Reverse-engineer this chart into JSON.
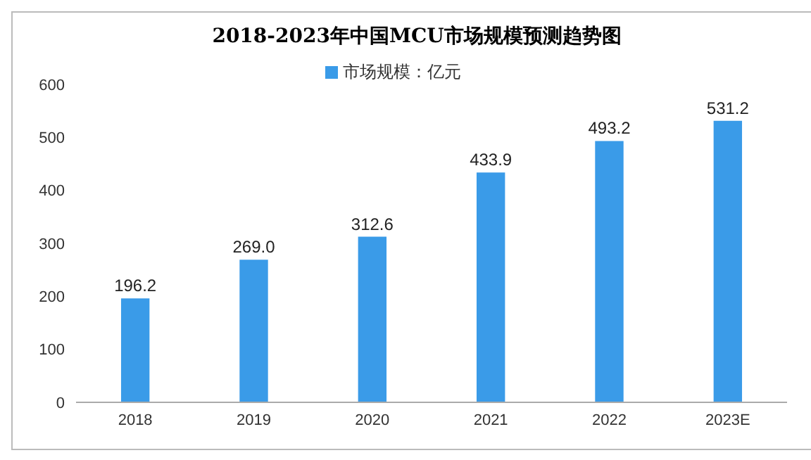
{
  "chart_data": {
    "type": "bar",
    "title": "2018-2023年中国MCU市场规模预测趋势图",
    "categories": [
      "2018",
      "2019",
      "2020",
      "2021",
      "2022",
      "2023E"
    ],
    "series": [
      {
        "name": "市场规模：亿元",
        "color": "#3a9be8",
        "values": [
          196.2,
          269.0,
          312.6,
          433.9,
          493.2,
          531.2
        ],
        "value_labels": [
          "196.2",
          "269.0",
          "312.6",
          "433.9",
          "493.2",
          "531.2"
        ]
      }
    ],
    "ylim": [
      0,
      600
    ],
    "yticks": [
      0,
      100,
      200,
      300,
      400,
      500,
      600
    ],
    "legend": "top",
    "grid": false
  }
}
